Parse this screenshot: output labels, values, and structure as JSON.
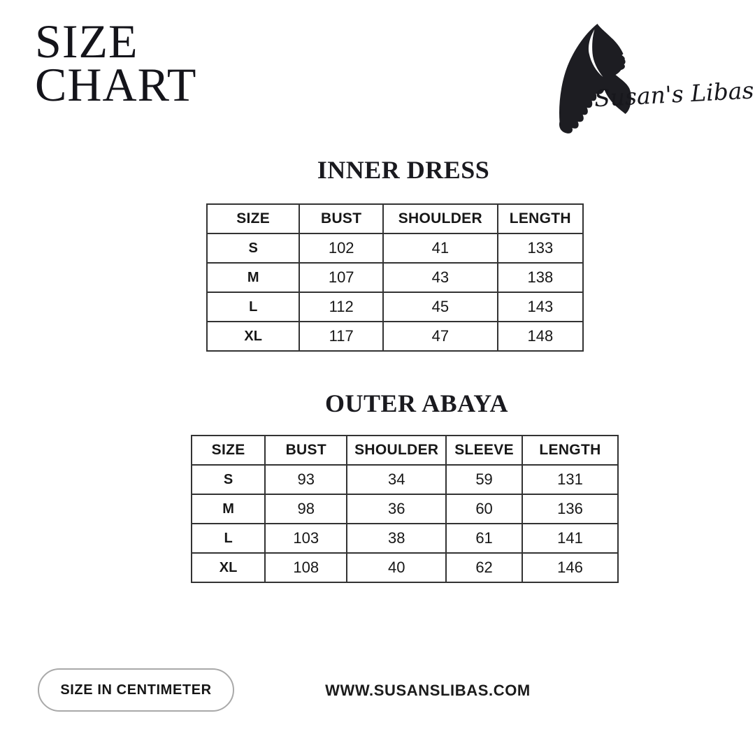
{
  "page": {
    "title_line1": "SIZE",
    "title_line2": "CHART"
  },
  "brand": {
    "name": "Susan's Libas",
    "logo_icon": "hijab-woman-silhouette"
  },
  "tables": [
    {
      "title": "INNER DRESS",
      "headers": [
        "SIZE",
        "BUST",
        "SHOULDER",
        "LENGTH"
      ],
      "rows": [
        [
          "S",
          "102",
          "41",
          "133"
        ],
        [
          "M",
          "107",
          "43",
          "138"
        ],
        [
          "L",
          "112",
          "45",
          "143"
        ],
        [
          "XL",
          "117",
          "47",
          "148"
        ]
      ]
    },
    {
      "title": "OUTER ABAYA",
      "headers": [
        "SIZE",
        "BUST",
        "SHOULDER",
        "SLEEVE",
        "LENGTH"
      ],
      "rows": [
        [
          "S",
          "93",
          "34",
          "59",
          "131"
        ],
        [
          "M",
          "98",
          "36",
          "60",
          "136"
        ],
        [
          "L",
          "103",
          "38",
          "61",
          "141"
        ],
        [
          "XL",
          "108",
          "40",
          "62",
          "146"
        ]
      ]
    }
  ],
  "footer": {
    "unit_label": "SIZE IN CENTIMETER",
    "website": "WWW.SUSANSLIBAS.COM"
  },
  "colors": {
    "background": "#ffffff",
    "ink": "#1b1b1b",
    "table_border": "#333333",
    "pill_border": "#a9a9a9"
  }
}
